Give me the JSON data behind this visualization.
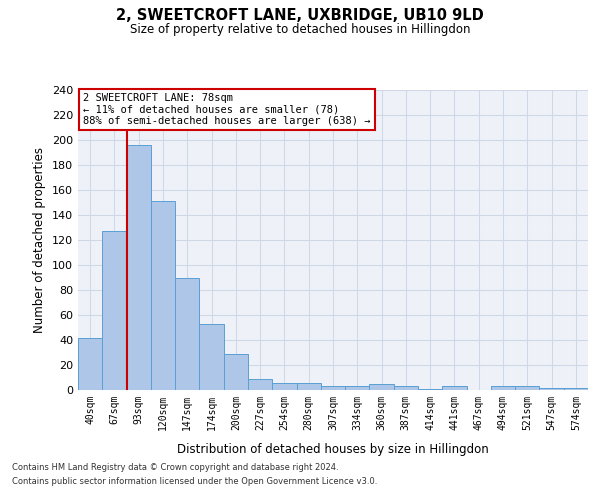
{
  "title": "2, SWEETCROFT LANE, UXBRIDGE, UB10 9LD",
  "subtitle": "Size of property relative to detached houses in Hillingdon",
  "xlabel": "Distribution of detached houses by size in Hillingdon",
  "ylabel": "Number of detached properties",
  "bar_color": "#aec6e8",
  "bar_edge_color": "#5a9fd4",
  "categories": [
    "40sqm",
    "67sqm",
    "93sqm",
    "120sqm",
    "147sqm",
    "174sqm",
    "200sqm",
    "227sqm",
    "254sqm",
    "280sqm",
    "307sqm",
    "334sqm",
    "360sqm",
    "387sqm",
    "414sqm",
    "441sqm",
    "467sqm",
    "494sqm",
    "521sqm",
    "547sqm",
    "574sqm"
  ],
  "values": [
    42,
    127,
    196,
    151,
    90,
    53,
    29,
    9,
    6,
    6,
    3,
    3,
    5,
    3,
    1,
    3,
    0,
    3,
    3,
    2,
    2
  ],
  "vline_x_index": 1,
  "vline_color": "#cc0000",
  "annotation_text": "2 SWEETCROFT LANE: 78sqm\n← 11% of detached houses are smaller (78)\n88% of semi-detached houses are larger (638) →",
  "annotation_box_color": "#ffffff",
  "annotation_box_edgecolor": "#cc0000",
  "ylim": [
    0,
    240
  ],
  "yticks": [
    0,
    20,
    40,
    60,
    80,
    100,
    120,
    140,
    160,
    180,
    200,
    220,
    240
  ],
  "grid_color": "#d0d8e8",
  "bg_color": "#eef2f8",
  "footer_line1": "Contains HM Land Registry data © Crown copyright and database right 2024.",
  "footer_line2": "Contains public sector information licensed under the Open Government Licence v3.0."
}
